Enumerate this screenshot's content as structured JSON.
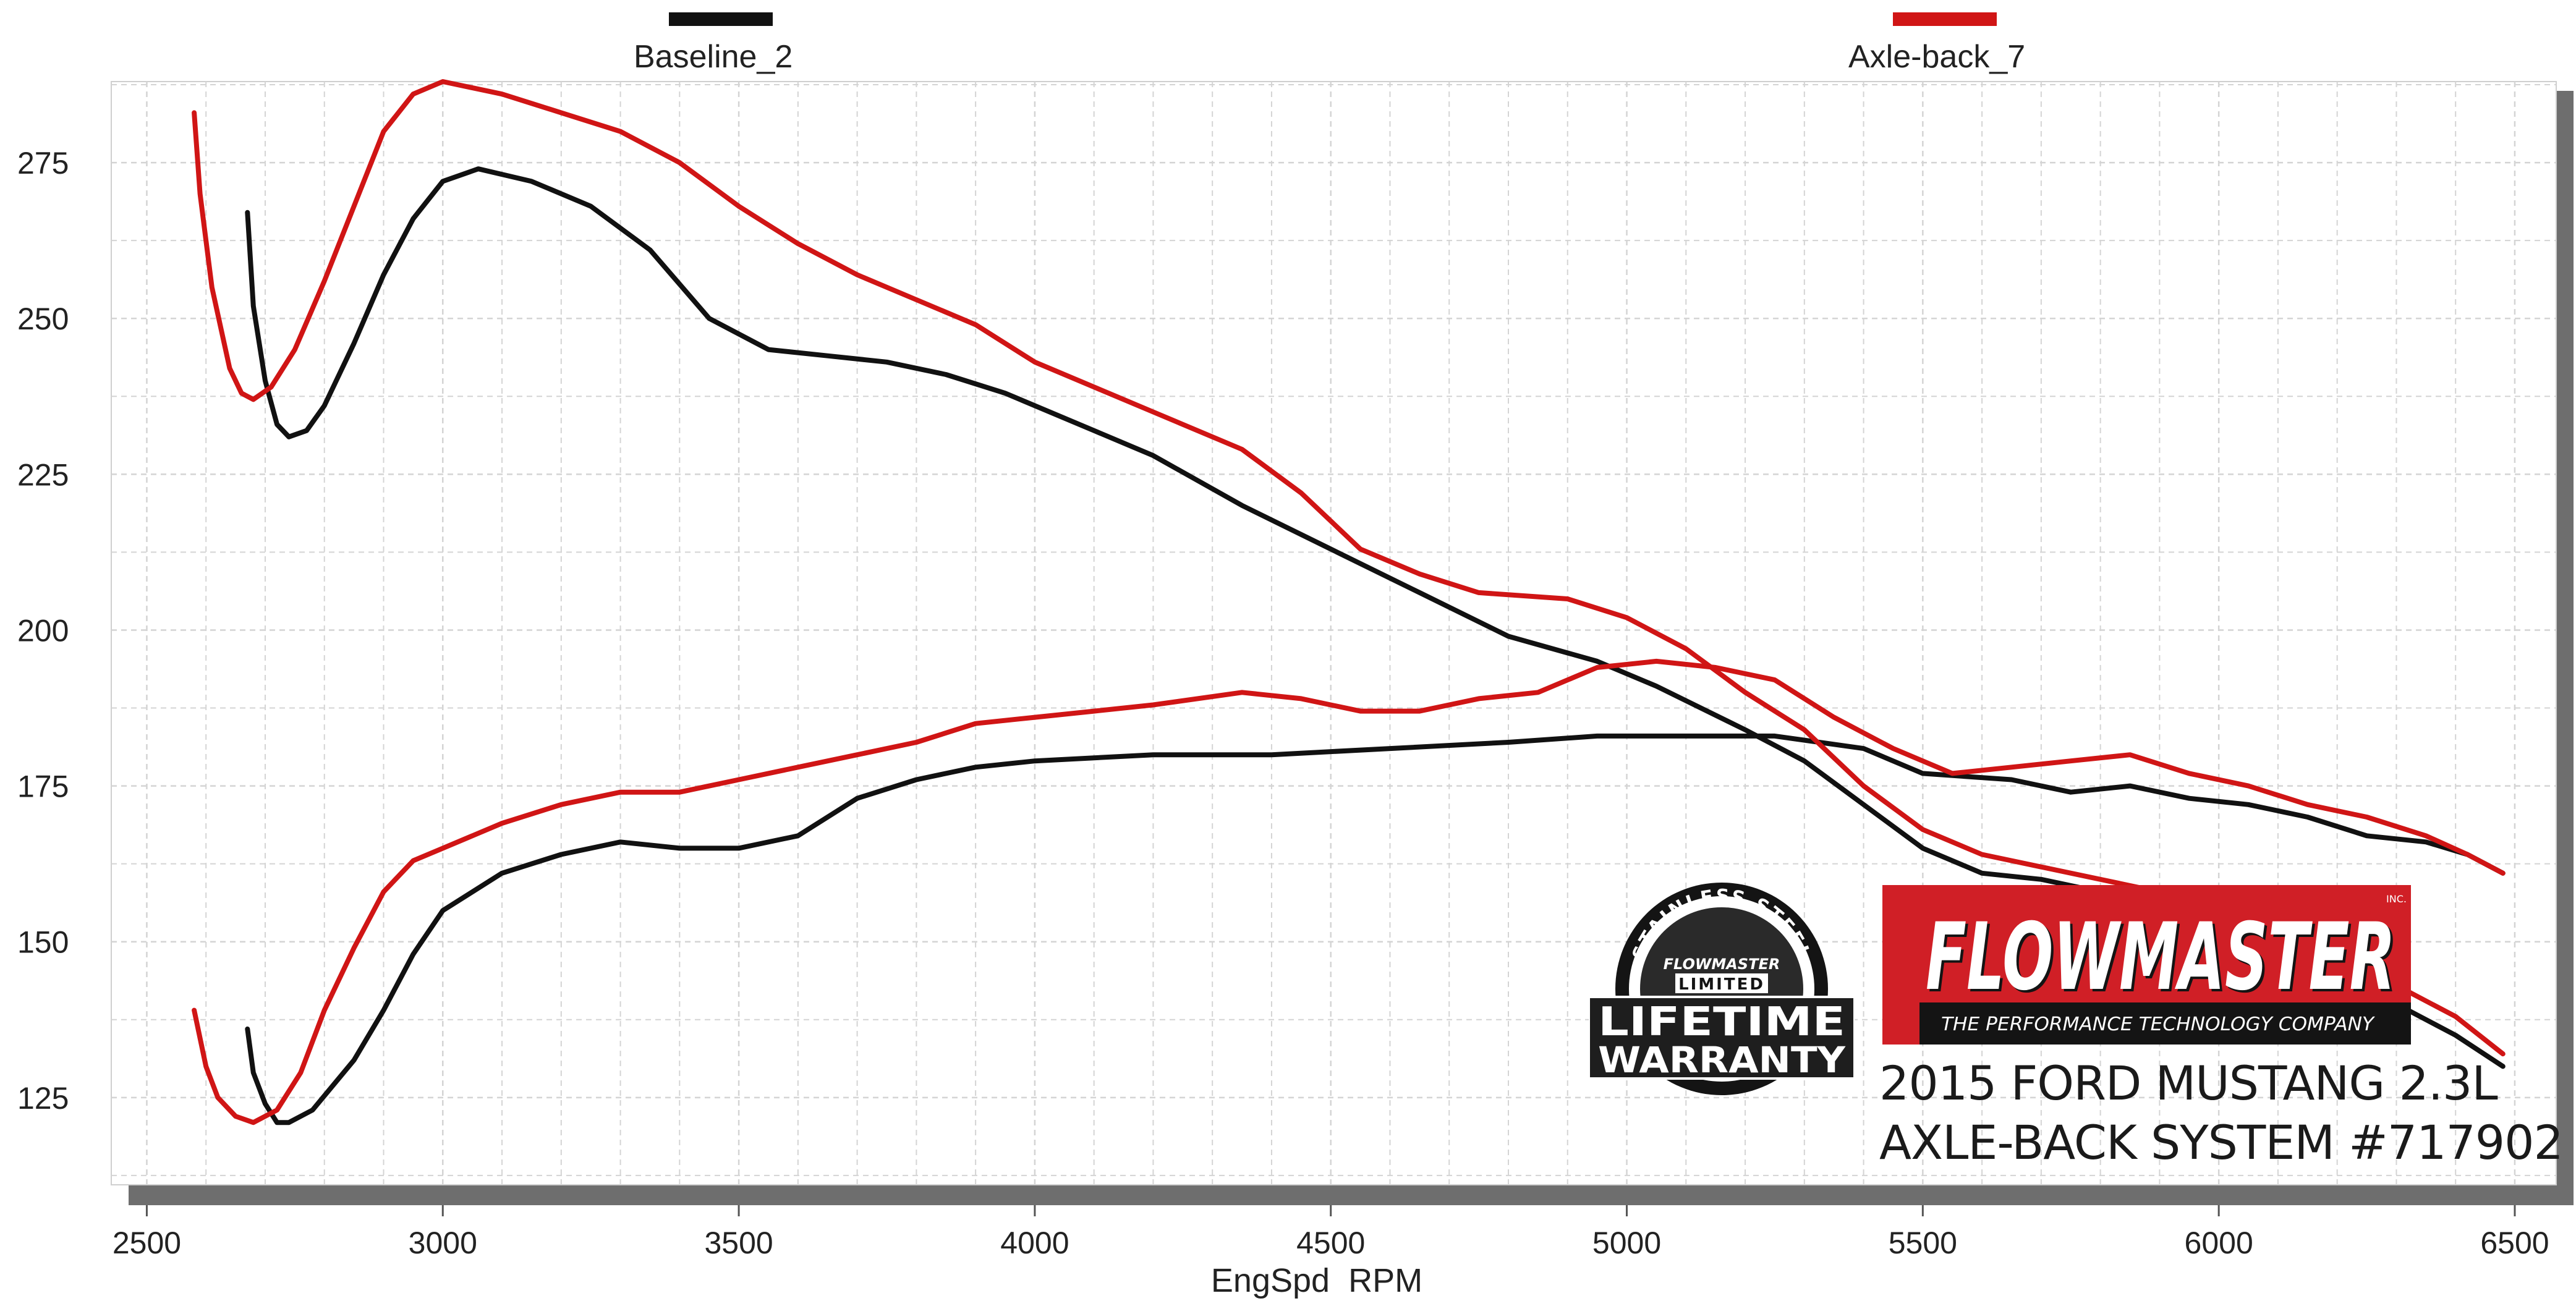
{
  "chart_data": {
    "type": "line",
    "xlabel": "EngSpd  RPM",
    "ylabel": "",
    "xlim": [
      2440,
      6570
    ],
    "ylim": [
      111,
      288
    ],
    "x_ticks": [
      2500,
      3000,
      3500,
      4000,
      4500,
      5000,
      5500,
      6000,
      6500
    ],
    "y_ticks": [
      125,
      150,
      175,
      200,
      225,
      250,
      275
    ],
    "grid": true,
    "legend_position": "top",
    "legend": [
      {
        "name": "Baseline_2",
        "color": "#111111"
      },
      {
        "name": "Axle-back_7",
        "color": "#d01515"
      }
    ],
    "series": [
      {
        "name": "Baseline_2",
        "curve": "upper",
        "color": "#111111",
        "points": [
          [
            2670,
            267
          ],
          [
            2680,
            252
          ],
          [
            2700,
            240
          ],
          [
            2720,
            233
          ],
          [
            2740,
            231
          ],
          [
            2770,
            232
          ],
          [
            2800,
            236
          ],
          [
            2850,
            246
          ],
          [
            2900,
            257
          ],
          [
            2950,
            266
          ],
          [
            3000,
            272
          ],
          [
            3060,
            274
          ],
          [
            3150,
            272
          ],
          [
            3250,
            268
          ],
          [
            3350,
            261
          ],
          [
            3450,
            250
          ],
          [
            3550,
            245
          ],
          [
            3650,
            244
          ],
          [
            3750,
            243
          ],
          [
            3850,
            241
          ],
          [
            3950,
            238
          ],
          [
            4100,
            232
          ],
          [
            4200,
            228
          ],
          [
            4350,
            220
          ],
          [
            4500,
            213
          ],
          [
            4650,
            206
          ],
          [
            4800,
            199
          ],
          [
            4950,
            195
          ],
          [
            5050,
            191
          ],
          [
            5200,
            184
          ],
          [
            5300,
            179
          ],
          [
            5400,
            172
          ],
          [
            5500,
            165
          ],
          [
            5600,
            161
          ],
          [
            5700,
            160
          ],
          [
            5800,
            158
          ],
          [
            5900,
            156
          ],
          [
            6050,
            152
          ],
          [
            6200,
            146
          ],
          [
            6300,
            140
          ],
          [
            6400,
            135
          ],
          [
            6480,
            130
          ]
        ]
      },
      {
        "name": "Baseline_2",
        "curve": "lower",
        "color": "#111111",
        "points": [
          [
            2670,
            136
          ],
          [
            2680,
            129
          ],
          [
            2700,
            124
          ],
          [
            2720,
            121
          ],
          [
            2740,
            121
          ],
          [
            2780,
            123
          ],
          [
            2850,
            131
          ],
          [
            2900,
            139
          ],
          [
            2950,
            148
          ],
          [
            3000,
            155
          ],
          [
            3100,
            161
          ],
          [
            3200,
            164
          ],
          [
            3300,
            166
          ],
          [
            3400,
            165
          ],
          [
            3500,
            165
          ],
          [
            3600,
            167
          ],
          [
            3700,
            173
          ],
          [
            3800,
            176
          ],
          [
            3900,
            178
          ],
          [
            4000,
            179
          ],
          [
            4200,
            180
          ],
          [
            4400,
            180
          ],
          [
            4600,
            181
          ],
          [
            4800,
            182
          ],
          [
            4950,
            183
          ],
          [
            5100,
            183
          ],
          [
            5250,
            183
          ],
          [
            5400,
            181
          ],
          [
            5500,
            177
          ],
          [
            5650,
            176
          ],
          [
            5750,
            174
          ],
          [
            5850,
            175
          ],
          [
            5950,
            173
          ],
          [
            6050,
            172
          ],
          [
            6150,
            170
          ],
          [
            6250,
            167
          ],
          [
            6350,
            166
          ],
          [
            6420,
            164
          ],
          [
            6480,
            161
          ]
        ]
      },
      {
        "name": "Axle-back_7",
        "curve": "upper",
        "color": "#d01515",
        "points": [
          [
            2580,
            283
          ],
          [
            2590,
            270
          ],
          [
            2610,
            255
          ],
          [
            2640,
            242
          ],
          [
            2660,
            238
          ],
          [
            2680,
            237
          ],
          [
            2710,
            239
          ],
          [
            2750,
            245
          ],
          [
            2800,
            256
          ],
          [
            2850,
            268
          ],
          [
            2900,
            280
          ],
          [
            2950,
            286
          ],
          [
            3000,
            288
          ],
          [
            3100,
            286
          ],
          [
            3200,
            283
          ],
          [
            3300,
            280
          ],
          [
            3400,
            275
          ],
          [
            3500,
            268
          ],
          [
            3600,
            262
          ],
          [
            3700,
            257
          ],
          [
            3800,
            253
          ],
          [
            3900,
            249
          ],
          [
            4000,
            243
          ],
          [
            4100,
            239
          ],
          [
            4200,
            235
          ],
          [
            4350,
            229
          ],
          [
            4450,
            222
          ],
          [
            4550,
            213
          ],
          [
            4650,
            209
          ],
          [
            4750,
            206
          ],
          [
            4900,
            205
          ],
          [
            5000,
            202
          ],
          [
            5100,
            197
          ],
          [
            5200,
            190
          ],
          [
            5300,
            184
          ],
          [
            5400,
            175
          ],
          [
            5500,
            168
          ],
          [
            5600,
            164
          ],
          [
            5700,
            162
          ],
          [
            5800,
            160
          ],
          [
            5900,
            158
          ],
          [
            6000,
            155
          ],
          [
            6100,
            152
          ],
          [
            6200,
            148
          ],
          [
            6300,
            143
          ],
          [
            6400,
            138
          ],
          [
            6480,
            132
          ]
        ]
      },
      {
        "name": "Axle-back_7",
        "curve": "lower",
        "color": "#d01515",
        "points": [
          [
            2580,
            139
          ],
          [
            2600,
            130
          ],
          [
            2620,
            125
          ],
          [
            2650,
            122
          ],
          [
            2680,
            121
          ],
          [
            2720,
            123
          ],
          [
            2760,
            129
          ],
          [
            2800,
            139
          ],
          [
            2850,
            149
          ],
          [
            2900,
            158
          ],
          [
            2950,
            163
          ],
          [
            3000,
            165
          ],
          [
            3100,
            169
          ],
          [
            3200,
            172
          ],
          [
            3300,
            174
          ],
          [
            3400,
            174
          ],
          [
            3500,
            176
          ],
          [
            3600,
            178
          ],
          [
            3700,
            180
          ],
          [
            3800,
            182
          ],
          [
            3900,
            185
          ],
          [
            4000,
            186
          ],
          [
            4100,
            187
          ],
          [
            4200,
            188
          ],
          [
            4350,
            190
          ],
          [
            4450,
            189
          ],
          [
            4550,
            187
          ],
          [
            4650,
            187
          ],
          [
            4750,
            189
          ],
          [
            4850,
            190
          ],
          [
            4950,
            194
          ],
          [
            5050,
            195
          ],
          [
            5150,
            194
          ],
          [
            5250,
            192
          ],
          [
            5350,
            186
          ],
          [
            5450,
            181
          ],
          [
            5550,
            177
          ],
          [
            5650,
            178
          ],
          [
            5750,
            179
          ],
          [
            5850,
            180
          ],
          [
            5950,
            177
          ],
          [
            6050,
            175
          ],
          [
            6150,
            172
          ],
          [
            6250,
            170
          ],
          [
            6350,
            167
          ],
          [
            6420,
            164
          ],
          [
            6480,
            161
          ]
        ]
      }
    ]
  },
  "branding": {
    "logo_text": "FLOWMASTER",
    "logo_inc": "INC.",
    "logo_tagline": "THE PERFORMANCE TECHNOLOGY COMPANY",
    "badge_arc": "STAINLESS STEEL",
    "badge_brand": "FLOWMASTER",
    "badge_limited": "LIMITED",
    "badge_line1": "LIFETIME",
    "badge_line2": "WARRANTY",
    "caption_line1": "2015 FORD MUSTANG 2.3L",
    "caption_line2": "AXLE-BACK SYSTEM #717902"
  },
  "colors": {
    "baseline": "#111111",
    "axle_back": "#d01515",
    "logo_red": "#d01f26",
    "logo_black": "#141414"
  }
}
